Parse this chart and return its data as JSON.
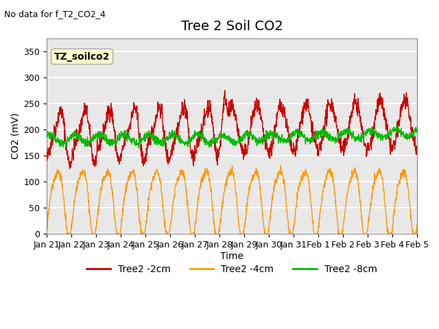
{
  "title": "Tree 2 Soil CO2",
  "topleft_text": "No data for f_T2_CO2_4",
  "box_label": "TZ_soilco2",
  "ylabel": "CO2 (mV)",
  "xlabel": "Time",
  "ylim": [
    0,
    375
  ],
  "yticks": [
    0,
    50,
    100,
    150,
    200,
    250,
    300,
    350
  ],
  "xtick_positions": [
    0,
    1,
    2,
    3,
    4,
    5,
    6,
    7,
    8,
    9,
    10,
    11,
    12,
    13,
    14,
    15
  ],
  "xtick_labels": [
    "Jan 21",
    "Jan 22",
    "Jan 23",
    "Jan 24",
    "Jan 25",
    "Jan 26",
    "Jan 27",
    "Jan 28",
    "Jan 29",
    "Jan 30",
    "Jan 31",
    "Feb 1",
    "Feb 2",
    "Feb 3",
    "Feb 4",
    "Feb 5"
  ],
  "line_colors": {
    "2cm": "#cc0000",
    "4cm": "#ff9900",
    "8cm": "#00bb00"
  },
  "legend_labels": [
    "Tree2 -2cm",
    "Tree2 -4cm",
    "Tree2 -8cm"
  ],
  "background_color": "#ffffff",
  "plot_bg_color": "#e8e8e8",
  "grid_color": "#ffffff",
  "title_fontsize": 14,
  "label_fontsize": 10,
  "tick_fontsize": 9
}
